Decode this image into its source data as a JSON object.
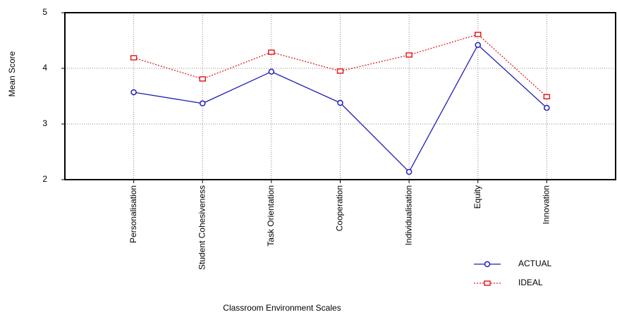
{
  "chart_data": {
    "type": "line",
    "x_label": "Classroom Environment Scales",
    "y_label": "Mean Score",
    "categories": [
      "Personalisation",
      "Student Cohesiveness",
      "Task Orientation",
      "Cooperation",
      "Individualisation",
      "Equity",
      "Innovation"
    ],
    "series": [
      {
        "name": "ACTUAL",
        "color": "#1f1fb4",
        "marker": "circle",
        "dash": "solid",
        "values": [
          3.57,
          3.37,
          3.94,
          3.38,
          2.14,
          4.42,
          3.29
        ]
      },
      {
        "name": "IDEAL",
        "color": "#e02020",
        "marker": "square",
        "dash": "dotted",
        "values": [
          4.19,
          3.81,
          4.29,
          3.95,
          4.24,
          4.61,
          3.49
        ]
      }
    ],
    "ylim": [
      2,
      5
    ],
    "yticks": [
      2,
      3,
      4,
      5
    ],
    "grid": true
  }
}
